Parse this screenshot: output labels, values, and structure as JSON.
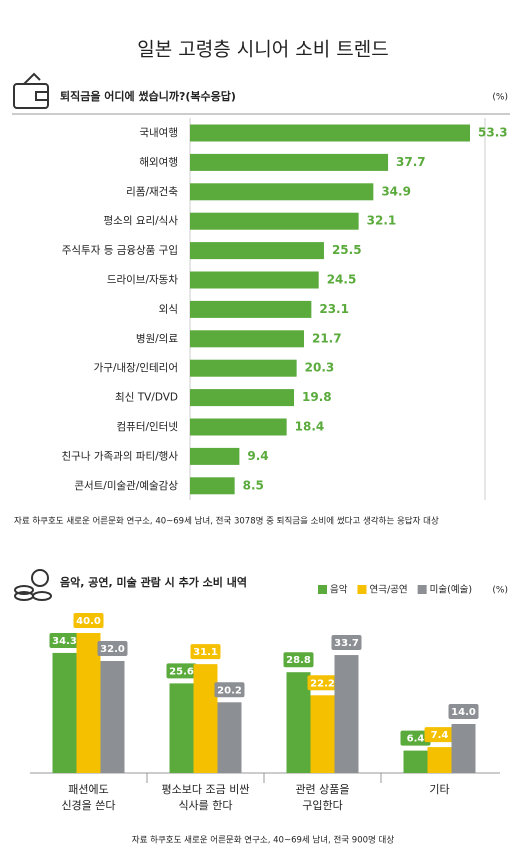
{
  "title": "일본 고령층 시니어 소비 트렌드",
  "chart_data": [
    {
      "type": "hbar",
      "title": "퇴직금을 어디에 썼습니까?(복수응답)",
      "unit": "(%)",
      "categories": [
        "국내여행",
        "해외여행",
        "리폼/재건축",
        "평소의 요리/식사",
        "주식투자 등 금융상품 구입",
        "드라이브/자동차",
        "외식",
        "병원/의료",
        "가구/내장/인테리어",
        "최신 TV/DVD",
        "컴퓨터/인터넷",
        "친구나 가족과의 파티/행사",
        "콘서트/미술관/예술감상"
      ],
      "values": [
        53.3,
        37.7,
        34.9,
        32.1,
        25.5,
        24.5,
        23.1,
        21.7,
        20.3,
        19.8,
        18.4,
        9.4,
        8.5
      ],
      "color": "#5aaa3c",
      "source": "자료 하쿠호도 새로운 어른문화 연구소, 40~69세 남녀, 전국 3078명 중 퇴직금을 소비에 썼다고 생각하는 응답자 대상"
    },
    {
      "type": "grouped-bar",
      "title": "음악, 공연, 미술 관람 시 추가 소비 내역",
      "unit": "(%)",
      "categories": [
        "패션에도\n신경을 쓴다",
        "평소보다 조금 비싼\n식사를 한다",
        "관련 상품을\n구입한다",
        "기타"
      ],
      "series": [
        {
          "name": "음악",
          "color": "#5aaa3c",
          "values": [
            34.3,
            25.6,
            28.8,
            6.4
          ],
          "value_labels": [
            "34.3",
            "25.6",
            "28.8",
            "6.4"
          ]
        },
        {
          "name": "연극/공연",
          "color": "#f5c000",
          "values": [
            40,
            31.1,
            22.2,
            7.4
          ],
          "value_labels": [
            "40.0",
            "31.1",
            "22.2",
            "7.4"
          ]
        },
        {
          "name": "미술(예술)",
          "color": "#8c8f93",
          "values": [
            32,
            20.2,
            33.7,
            14
          ],
          "value_labels": [
            "32.0",
            "20.2",
            "33.7",
            "14.0"
          ]
        }
      ],
      "source": "자료 하쿠호도 새로운 어른문화 연구소, 40~69세 남녀, 전국 900명 대상"
    }
  ]
}
